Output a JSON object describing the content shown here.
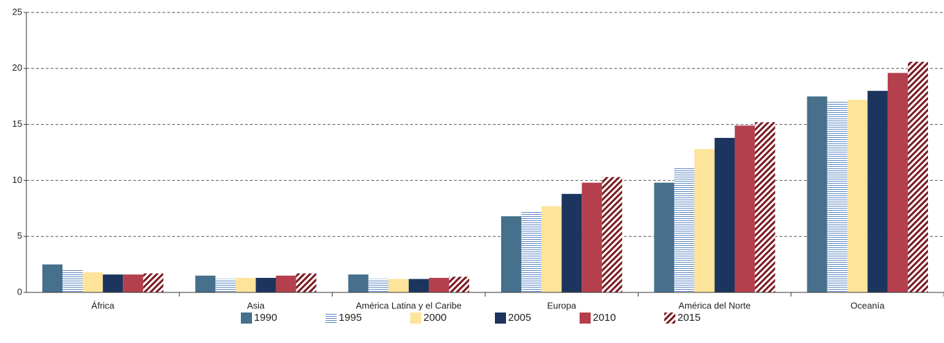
{
  "chart_data": {
    "type": "bar",
    "categories": [
      "África",
      "Asia",
      "América Latina y el Caribe",
      "Europa",
      "América del Norte",
      "Oceanía"
    ],
    "series": [
      {
        "name": "1990",
        "color": "#46708c",
        "values": [
          2.5,
          1.5,
          1.6,
          6.8,
          9.8,
          17.5
        ]
      },
      {
        "name": "1995",
        "color": "#5b86c4",
        "pattern": "horizontal-lines",
        "values": [
          2.1,
          1.2,
          1.2,
          7.2,
          11.2,
          17.1
        ]
      },
      {
        "name": "2000",
        "color": "#fde49a",
        "values": [
          1.8,
          1.3,
          1.2,
          7.7,
          12.8,
          17.2
        ]
      },
      {
        "name": "2005",
        "color": "#1c355e",
        "values": [
          1.6,
          1.3,
          1.2,
          8.8,
          13.8,
          18.0
        ]
      },
      {
        "name": "2010",
        "color": "#b5404d",
        "values": [
          1.6,
          1.5,
          1.3,
          9.8,
          14.9,
          19.6
        ]
      },
      {
        "name": "2015",
        "color": "#7b1a22",
        "pattern": "diagonal-hatch",
        "values": [
          1.7,
          1.7,
          1.4,
          10.3,
          15.2,
          20.6
        ]
      }
    ],
    "ylim": [
      0,
      25
    ],
    "yticks": [
      0,
      5,
      10,
      15,
      20,
      25
    ],
    "grid": true,
    "legend": "bottom"
  }
}
